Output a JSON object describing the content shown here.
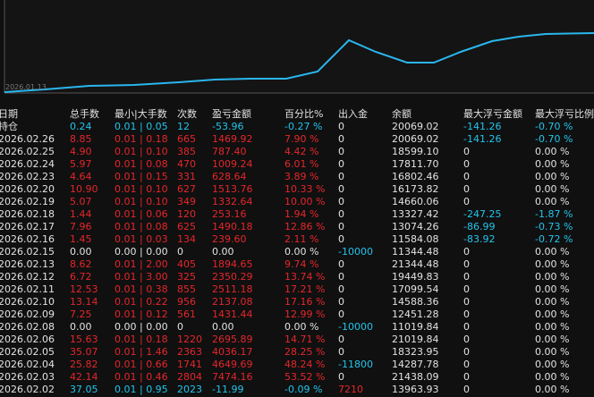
{
  "chart_label": "2026.01.13",
  "colors": {
    "profit": "#e5262b",
    "loss": "#22c4ea",
    "neutral": "#e2e2e2"
  },
  "table": {
    "header": [
      "日期",
      "总手数",
      "最小|大手数",
      "次数",
      "盈亏金额",
      "百分比%",
      "出入金",
      "余额",
      "最大浮亏金额",
      "最大浮亏比例"
    ],
    "rows": [
      {
        "tone": "loss",
        "cells": [
          "持仓",
          "0.24",
          "0.01 | 0.05",
          "12",
          "-53.96",
          "-0.27 %",
          "0",
          "20069.02",
          "-141.26",
          "-0.70 %"
        ]
      },
      {
        "tone": "profit",
        "cells": [
          "2026.02.26",
          "8.85",
          "0.01 | 0.18",
          "665",
          "1469.92",
          "7.90 %",
          "0",
          "20069.02",
          "-141.26",
          "-0.70 %"
        ]
      },
      {
        "tone": "profit",
        "cells": [
          "2026.02.25",
          "4.90",
          "0.01 | 0.10",
          "385",
          "787.40",
          "4.42 %",
          "0",
          "18599.10",
          "0",
          "0.00 %"
        ]
      },
      {
        "tone": "profit",
        "cells": [
          "2026.02.24",
          "5.97",
          "0.01 | 0.08",
          "470",
          "1009.24",
          "6.01 %",
          "0",
          "17811.70",
          "0",
          "0.00 %"
        ]
      },
      {
        "tone": "profit",
        "cells": [
          "2026.02.23",
          "4.64",
          "0.01 | 0.15",
          "331",
          "628.64",
          "3.89 %",
          "0",
          "16802.46",
          "0",
          "0.00 %"
        ]
      },
      {
        "tone": "profit",
        "cells": [
          "2026.02.20",
          "10.90",
          "0.01 | 0.10",
          "627",
          "1513.76",
          "10.33 %",
          "0",
          "16173.82",
          "0",
          "0.00 %"
        ]
      },
      {
        "tone": "profit",
        "cells": [
          "2026.02.19",
          "5.07",
          "0.01 | 0.10",
          "349",
          "1332.64",
          "10.00 %",
          "0",
          "14660.06",
          "0",
          "0.00 %"
        ]
      },
      {
        "tone": "profit",
        "cells": [
          "2026.02.18",
          "1.44",
          "0.01 | 0.06",
          "120",
          "253.16",
          "1.94 %",
          "0",
          "13327.42",
          "-247.25",
          "-1.87 %"
        ]
      },
      {
        "tone": "profit",
        "cells": [
          "2026.02.17",
          "7.96",
          "0.01 | 0.08",
          "625",
          "1490.18",
          "12.86 %",
          "0",
          "13074.26",
          "-86.99",
          "-0.73 %"
        ]
      },
      {
        "tone": "profit",
        "cells": [
          "2026.02.16",
          "1.45",
          "0.01 | 0.03",
          "134",
          "239.60",
          "2.11 %",
          "0",
          "11584.08",
          "-83.92",
          "-0.72 %"
        ]
      },
      {
        "tone": "neutral",
        "cells": [
          "2026.02.15",
          "0.00",
          "0.00 | 0.00",
          "0",
          "0.00",
          "0.00 %",
          "-10000",
          "11344.48",
          "0",
          "0.00 %"
        ]
      },
      {
        "tone": "profit",
        "cells": [
          "2026.02.13",
          "8.62",
          "0.01 | 2.00",
          "405",
          "1894.65",
          "9.74 %",
          "0",
          "21344.48",
          "0",
          "0.00 %"
        ]
      },
      {
        "tone": "profit",
        "cells": [
          "2026.02.12",
          "6.72",
          "0.01 | 3.00",
          "325",
          "2350.29",
          "13.74 %",
          "0",
          "19449.83",
          "0",
          "0.00 %"
        ]
      },
      {
        "tone": "profit",
        "cells": [
          "2026.02.11",
          "12.53",
          "0.01 | 0.38",
          "855",
          "2511.18",
          "17.21 %",
          "0",
          "17099.54",
          "0",
          "0.00 %"
        ]
      },
      {
        "tone": "profit",
        "cells": [
          "2026.02.10",
          "13.14",
          "0.01 | 0.22",
          "956",
          "2137.08",
          "17.16 %",
          "0",
          "14588.36",
          "0",
          "0.00 %"
        ]
      },
      {
        "tone": "profit",
        "cells": [
          "2026.02.09",
          "7.25",
          "0.01 | 0.12",
          "561",
          "1431.44",
          "12.99 %",
          "0",
          "12451.28",
          "0",
          "0.00 %"
        ]
      },
      {
        "tone": "neutral",
        "cells": [
          "2026.02.08",
          "0.00",
          "0.00 | 0.00",
          "0",
          "0.00",
          "0.00 %",
          "-10000",
          "11019.84",
          "0",
          "0.00 %"
        ]
      },
      {
        "tone": "profit",
        "cells": [
          "2026.02.06",
          "15.63",
          "0.01 | 0.18",
          "1220",
          "2695.89",
          "14.71 %",
          "0",
          "21019.84",
          "0",
          "0.00 %"
        ]
      },
      {
        "tone": "profit",
        "cells": [
          "2026.02.05",
          "35.07",
          "0.01 | 1.46",
          "2363",
          "4036.17",
          "28.25 %",
          "0",
          "18323.95",
          "0",
          "0.00 %"
        ]
      },
      {
        "tone": "profit",
        "cells": [
          "2026.02.04",
          "25.82",
          "0.01 | 0.66",
          "1741",
          "4649.69",
          "48.24 %",
          "-11800",
          "14287.78",
          "0",
          "0.00 %"
        ]
      },
      {
        "tone": "profit",
        "cells": [
          "2026.02.03",
          "42.14",
          "0.01 | 0.46",
          "2804",
          "7474.16",
          "53.52 %",
          "0",
          "21438.09",
          "0",
          "0.00 %"
        ]
      },
      {
        "tone": "loss",
        "cells": [
          "2026.02.02",
          "37.05",
          "0.01 | 0.95",
          "2023",
          "-11.99",
          "-0.09 %",
          "7210",
          "13963.93",
          "0",
          "0.00 %"
        ]
      }
    ]
  }
}
